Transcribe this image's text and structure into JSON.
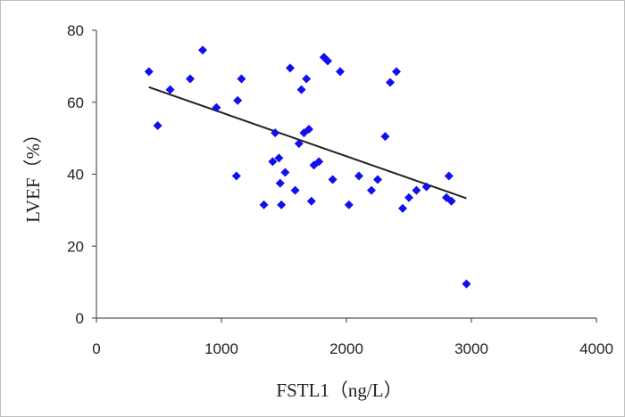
{
  "chart_data": {
    "type": "scatter",
    "xlabel": "FSTL1（ng/L）",
    "ylabel": "LVEF（%）",
    "xlim": [
      0,
      4000
    ],
    "ylim": [
      0,
      80
    ],
    "x_ticks": [
      "0",
      "1000",
      "2000",
      "3000",
      "4000"
    ],
    "y_ticks": [
      "0",
      "20",
      "40",
      "60",
      "80"
    ],
    "grid": false,
    "legend": "none",
    "marker_color": "#1010ee",
    "trendline": {
      "x": [
        420,
        2960
      ],
      "y": [
        64.2,
        33.3
      ],
      "color": "#222222"
    },
    "series": [
      {
        "points": [
          [
            420,
            68.5
          ],
          [
            490,
            53.5
          ],
          [
            590,
            63.5
          ],
          [
            750,
            66.5
          ],
          [
            850,
            74.5
          ],
          [
            960,
            58.5
          ],
          [
            1120,
            39.5
          ],
          [
            1130,
            60.5
          ],
          [
            1160,
            66.5
          ],
          [
            1340,
            31.5
          ],
          [
            1410,
            43.5
          ],
          [
            1430,
            51.5
          ],
          [
            1460,
            44.5
          ],
          [
            1470,
            37.5
          ],
          [
            1480,
            31.5
          ],
          [
            1510,
            40.5
          ],
          [
            1550,
            69.5
          ],
          [
            1590,
            35.5
          ],
          [
            1620,
            48.5
          ],
          [
            1640,
            63.5
          ],
          [
            1660,
            51.5
          ],
          [
            1680,
            66.5
          ],
          [
            1700,
            52.5
          ],
          [
            1720,
            32.5
          ],
          [
            1740,
            42.5
          ],
          [
            1780,
            43.5
          ],
          [
            1820,
            72.5
          ],
          [
            1850,
            71.5
          ],
          [
            1890,
            38.5
          ],
          [
            1950,
            68.5
          ],
          [
            2020,
            31.5
          ],
          [
            2100,
            39.5
          ],
          [
            2200,
            35.5
          ],
          [
            2250,
            38.5
          ],
          [
            2310,
            50.5
          ],
          [
            2350,
            65.5
          ],
          [
            2400,
            68.5
          ],
          [
            2450,
            30.5
          ],
          [
            2500,
            33.5
          ],
          [
            2560,
            35.5
          ],
          [
            2640,
            36.5
          ],
          [
            2800,
            33.5
          ],
          [
            2820,
            39.5
          ],
          [
            2840,
            32.5
          ],
          [
            2960,
            9.5
          ]
        ]
      }
    ]
  }
}
